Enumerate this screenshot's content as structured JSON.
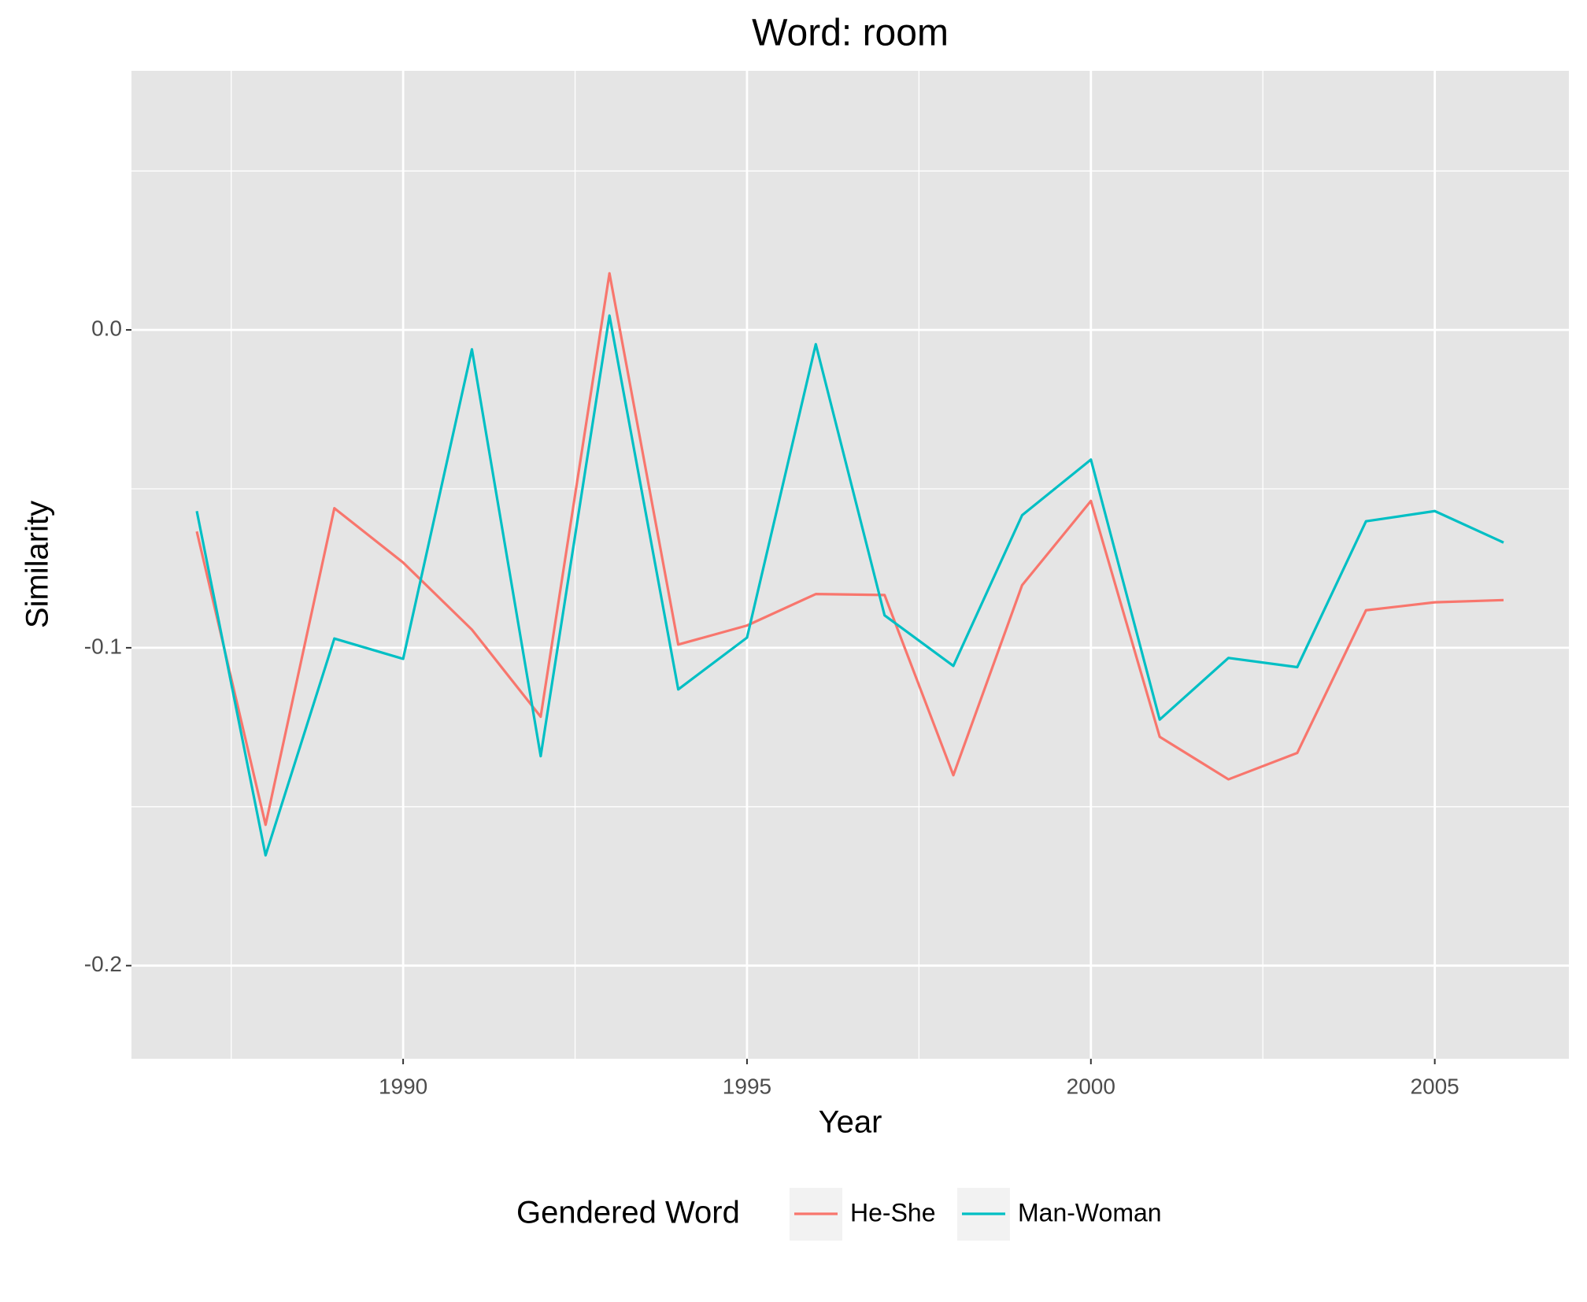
{
  "chart_data": {
    "type": "line",
    "title": "Word: room",
    "x_label": "Year",
    "y_label": "Similarity",
    "x": [
      1987,
      1988,
      1989,
      1990,
      1991,
      1992,
      1993,
      1994,
      1995,
      1996,
      1997,
      1998,
      1999,
      2000,
      2001,
      2002,
      2003,
      2004,
      2005,
      2006
    ],
    "series": [
      {
        "name": "He-She",
        "color": "#F8766D",
        "values": [
          -0.0634,
          -0.1557,
          -0.0561,
          -0.0732,
          -0.0943,
          -0.1217,
          0.0178,
          -0.099,
          -0.093,
          -0.0831,
          -0.0834,
          -0.1401,
          -0.0803,
          -0.0538,
          -0.128,
          -0.1414,
          -0.1331,
          -0.0882,
          -0.0857,
          -0.085
        ]
      },
      {
        "name": "Man-Woman",
        "color": "#00BFC4",
        "values": [
          -0.057,
          -0.1653,
          -0.0971,
          -0.1035,
          -0.0061,
          -0.1341,
          0.0045,
          -0.1131,
          -0.0968,
          -0.0045,
          -0.0898,
          -0.1057,
          -0.0583,
          -0.0408,
          -0.1226,
          -0.1032,
          -0.1061,
          -0.0602,
          -0.057,
          -0.0669
        ]
      }
    ],
    "legend_title": "Gendered Word",
    "legend_position": "bottom",
    "xlim": [
      1986.05,
      2006.95
    ],
    "xticks": [
      1990,
      1995,
      2000,
      2005
    ],
    "ylim": [
      -0.2293,
      0.0815
    ],
    "yticks": [
      {
        "value": 0,
        "label": "0.0"
      },
      -0.1,
      -0.2
    ],
    "grid": true,
    "minor_grid": true
  }
}
